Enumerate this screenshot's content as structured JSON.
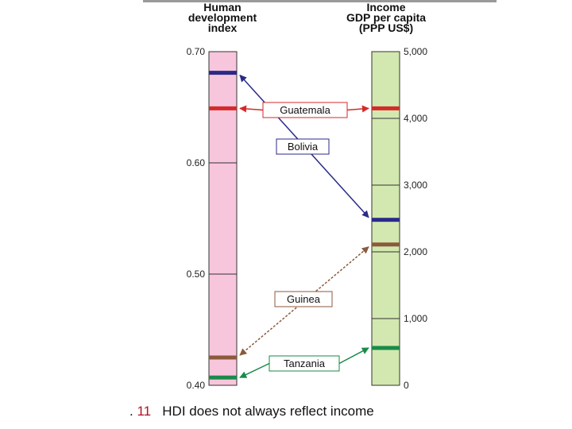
{
  "caption": {
    "prefix": ". ",
    "number": "11",
    "text": "HDI does not always reflect income"
  },
  "chart_data": {
    "type": "parallel-scale",
    "left_axis": {
      "title_lines": [
        "Human",
        "development",
        "index"
      ],
      "range": [
        0.4,
        0.7
      ],
      "ticks": [
        0.4,
        0.5,
        0.6,
        0.7
      ],
      "tick_labels": [
        "0.40",
        "0.50",
        "0.60",
        "0.70"
      ],
      "fill_color": "#f7c6dc"
    },
    "right_axis": {
      "title_lines": [
        "Income",
        "GDP per capita",
        "(PPP US$)"
      ],
      "range": [
        0,
        5000
      ],
      "ticks": [
        0,
        1000,
        2000,
        3000,
        4000,
        5000
      ],
      "tick_labels": [
        "0",
        "1,000",
        "2,000",
        "3,000",
        "4,000",
        "5,000"
      ],
      "fill_color": "#d2e8b0"
    },
    "countries": [
      {
        "name": "Guatemala",
        "hdi": 0.649,
        "income": 4150,
        "color": "#d42a2a",
        "arrow": "both"
      },
      {
        "name": "Bolivia",
        "hdi": 0.681,
        "income": 2480,
        "color": "#2a2a88",
        "arrow": "both"
      },
      {
        "name": "Guinea",
        "hdi": 0.425,
        "income": 2110,
        "color": "#8b5a3c",
        "arrow": "both"
      },
      {
        "name": "Tanzania",
        "hdi": 0.407,
        "income": 560,
        "color": "#1a8a4a",
        "arrow": "both"
      }
    ]
  }
}
